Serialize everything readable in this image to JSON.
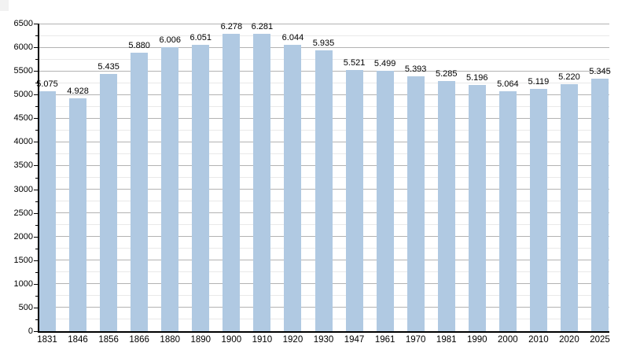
{
  "chart_data": {
    "type": "bar",
    "title": "",
    "xlabel": "",
    "ylabel": "",
    "categories": [
      "1831",
      "1846",
      "1856",
      "1866",
      "1880",
      "1890",
      "1900",
      "1910",
      "1920",
      "1930",
      "1947",
      "1961",
      "1970",
      "1981",
      "1990",
      "2000",
      "2010",
      "2020",
      "2025"
    ],
    "values": [
      5075,
      4928,
      5435,
      5880,
      6006,
      6051,
      6278,
      6281,
      6044,
      5935,
      5521,
      5499,
      5393,
      5285,
      5196,
      5064,
      5119,
      5220,
      5345
    ],
    "value_labels": [
      "5.075",
      "4.928",
      "5.435",
      "5.880",
      "6.006",
      "6.051",
      "6.278",
      "6.281",
      "6.044",
      "5.935",
      "5.521",
      "5.499",
      "5.393",
      "5.285",
      "5.196",
      "5.064",
      "5.119",
      "5.220",
      "5.345"
    ],
    "ylim": [
      0,
      6500
    ],
    "y_major_step": 500,
    "y_minor_step": 250,
    "y_tick_labels": [
      "0",
      "500",
      "1000",
      "1500",
      "2000",
      "2500",
      "3000",
      "3500",
      "4000",
      "4500",
      "5000",
      "5500",
      "6000",
      "6500"
    ],
    "grid": true,
    "legend_position": "none",
    "colors": {
      "bar_fill": "#b0c9e2",
      "grid_major": "#b3b3b3",
      "grid_minor": "#e9e9e9",
      "axis": "#000000",
      "text": "#000000",
      "background": "#ffffff",
      "corner_artifact": "#f2f2f2"
    }
  }
}
